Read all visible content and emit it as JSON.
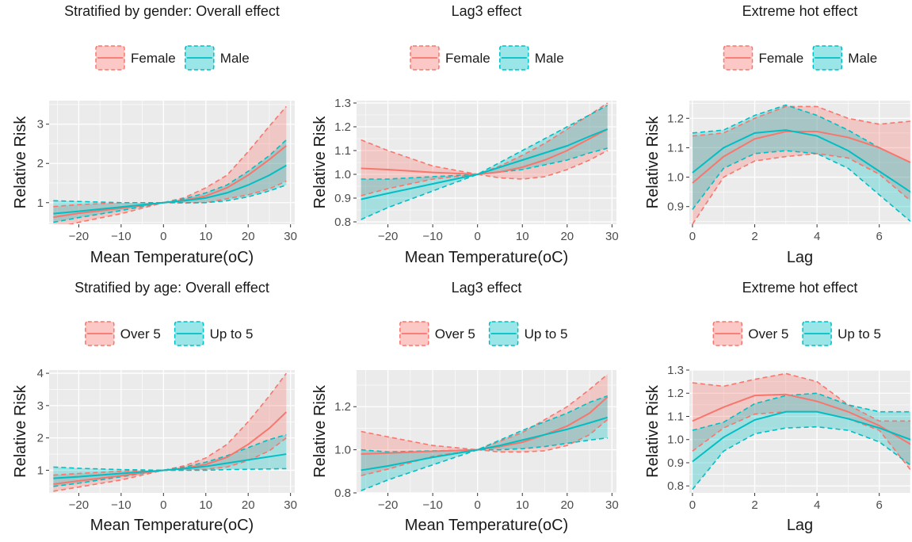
{
  "figure": {
    "colors": {
      "series_a": "#F8766D",
      "series_b": "#00BFC4",
      "panel_bg": "#EBEBEB",
      "grid": "#FFFFFF"
    }
  },
  "chart_data": [
    {
      "type": "line",
      "title": "Stratified by gender: Overall effect",
      "xlabel": "Mean Temperature(oC)",
      "ylabel": "Relative Risk",
      "xlim": [
        -27,
        31
      ],
      "ylim": [
        0.45,
        3.6
      ],
      "xticks": [
        -20,
        -10,
        0,
        10,
        20,
        30
      ],
      "yticks": [
        1,
        2,
        3
      ],
      "grid": true,
      "legend_position": "top",
      "x": [
        -26,
        -20,
        -10,
        0,
        5,
        10,
        15,
        20,
        25,
        29
      ],
      "series": [
        {
          "name": "Female",
          "color": "#F8766D",
          "values": [
            0.63,
            0.73,
            0.86,
            1.0,
            1.06,
            1.17,
            1.38,
            1.7,
            2.1,
            2.45
          ],
          "lower": [
            0.35,
            0.5,
            0.72,
            1.0,
            0.99,
            1.0,
            1.1,
            1.2,
            1.35,
            1.55
          ],
          "upper": [
            0.9,
            0.95,
            1.0,
            1.0,
            1.13,
            1.38,
            1.7,
            2.3,
            2.95,
            3.45
          ]
        },
        {
          "name": "Male",
          "color": "#00BFC4",
          "values": [
            0.72,
            0.78,
            0.89,
            1.0,
            1.05,
            1.12,
            1.25,
            1.45,
            1.7,
            1.95
          ],
          "lower": [
            0.5,
            0.62,
            0.8,
            1.0,
            1.0,
            1.0,
            1.05,
            1.15,
            1.3,
            1.45
          ],
          "upper": [
            1.05,
            1.03,
            1.0,
            1.0,
            1.1,
            1.25,
            1.45,
            1.8,
            2.2,
            2.6
          ]
        }
      ]
    },
    {
      "type": "line",
      "title": "Lag3 effect",
      "xlabel": "Mean Temperature(oC)",
      "ylabel": "Relative Risk",
      "xlim": [
        -27,
        31
      ],
      "ylim": [
        0.79,
        1.31
      ],
      "xticks": [
        -20,
        -10,
        0,
        10,
        20,
        30
      ],
      "yticks": [
        0.8,
        0.9,
        1.0,
        1.1,
        1.2,
        1.3
      ],
      "grid": true,
      "legend_position": "top",
      "x": [
        -26,
        -20,
        -10,
        0,
        5,
        10,
        15,
        20,
        25,
        29
      ],
      "series": [
        {
          "name": "Female",
          "color": "#F8766D",
          "values": [
            1.025,
            1.02,
            1.008,
            1.0,
            1.01,
            1.03,
            1.06,
            1.1,
            1.15,
            1.19
          ],
          "lower": [
            0.91,
            0.94,
            0.98,
            1.0,
            0.985,
            0.98,
            0.99,
            1.02,
            1.06,
            1.1
          ],
          "upper": [
            1.145,
            1.1,
            1.035,
            1.0,
            1.035,
            1.08,
            1.13,
            1.19,
            1.25,
            1.3
          ]
        },
        {
          "name": "Male",
          "color": "#00BFC4",
          "values": [
            0.895,
            0.92,
            0.96,
            1.0,
            1.03,
            1.06,
            1.09,
            1.12,
            1.16,
            1.19
          ],
          "lower": [
            0.81,
            0.86,
            0.93,
            1.0,
            1.01,
            1.02,
            1.04,
            1.06,
            1.09,
            1.11
          ],
          "upper": [
            0.98,
            0.98,
            0.99,
            1.0,
            1.05,
            1.1,
            1.15,
            1.2,
            1.25,
            1.29
          ]
        }
      ]
    },
    {
      "type": "line",
      "title": "Extreme hot effect",
      "xlabel": "Lag",
      "ylabel": "Relative Risk",
      "xlim": [
        -0.1,
        7
      ],
      "ylim": [
        0.84,
        1.26
      ],
      "xticks": [
        0,
        2,
        4,
        6
      ],
      "yticks": [
        0.9,
        1.0,
        1.1,
        1.2
      ],
      "grid": true,
      "legend_position": "top",
      "x": [
        0,
        1,
        2,
        3,
        4,
        5,
        6,
        7
      ],
      "series": [
        {
          "name": "Female",
          "color": "#F8766D",
          "values": [
            0.98,
            1.07,
            1.13,
            1.155,
            1.155,
            1.135,
            1.1,
            1.05
          ],
          "lower": [
            0.84,
            1.0,
            1.055,
            1.07,
            1.08,
            1.065,
            1.01,
            0.92
          ],
          "upper": [
            1.14,
            1.15,
            1.2,
            1.24,
            1.24,
            1.2,
            1.18,
            1.19
          ]
        },
        {
          "name": "Male",
          "color": "#00BFC4",
          "values": [
            1.015,
            1.1,
            1.15,
            1.16,
            1.14,
            1.09,
            1.02,
            0.95
          ],
          "lower": [
            0.89,
            1.03,
            1.08,
            1.09,
            1.08,
            1.03,
            0.94,
            0.85
          ],
          "upper": [
            1.15,
            1.16,
            1.21,
            1.245,
            1.21,
            1.16,
            1.1,
            1.05
          ]
        }
      ]
    },
    {
      "type": "line",
      "title": "Stratified by age: Overall effect",
      "xlabel": "Mean Temperature(oC)",
      "ylabel": "Relative Risk",
      "xlim": [
        -27,
        31
      ],
      "ylim": [
        0.3,
        4.1
      ],
      "xticks": [
        -20,
        -10,
        0,
        10,
        20,
        30
      ],
      "yticks": [
        1,
        2,
        3,
        4
      ],
      "grid": true,
      "legend_position": "top",
      "x": [
        -26,
        -20,
        -10,
        0,
        5,
        10,
        15,
        20,
        25,
        29
      ],
      "series": [
        {
          "name": "Over 5",
          "color": "#F8766D",
          "values": [
            0.57,
            0.67,
            0.83,
            1.0,
            1.06,
            1.18,
            1.4,
            1.8,
            2.3,
            2.8
          ],
          "lower": [
            0.35,
            0.48,
            0.7,
            1.0,
            1.0,
            1.03,
            1.1,
            1.3,
            1.6,
            2.0
          ],
          "upper": [
            0.85,
            0.9,
            0.97,
            1.0,
            1.14,
            1.38,
            1.8,
            2.5,
            3.3,
            4.0
          ]
        },
        {
          "name": "Up to 5",
          "color": "#00BFC4",
          "values": [
            0.75,
            0.8,
            0.9,
            1.0,
            1.05,
            1.12,
            1.22,
            1.32,
            1.42,
            1.5
          ],
          "lower": [
            0.5,
            0.6,
            0.8,
            1.0,
            1.0,
            1.0,
            1.02,
            1.03,
            1.04,
            1.05
          ],
          "upper": [
            1.1,
            1.06,
            1.02,
            1.0,
            1.1,
            1.25,
            1.45,
            1.7,
            1.95,
            2.1
          ]
        }
      ]
    },
    {
      "type": "line",
      "title": "Lag3 effect",
      "xlabel": "Mean Temperature(oC)",
      "ylabel": "Relative Risk",
      "xlim": [
        -27,
        31
      ],
      "ylim": [
        0.8,
        1.37
      ],
      "xticks": [
        -20,
        -10,
        0,
        10,
        20,
        30
      ],
      "yticks": [
        0.8,
        1.0,
        1.2
      ],
      "grid": true,
      "legend_position": "top",
      "x": [
        -26,
        -20,
        -10,
        0,
        5,
        10,
        15,
        20,
        25,
        29
      ],
      "series": [
        {
          "name": "Over 5",
          "color": "#F8766D",
          "values": [
            0.98,
            0.985,
            0.993,
            1.0,
            1.015,
            1.035,
            1.07,
            1.11,
            1.17,
            1.245
          ],
          "lower": [
            0.88,
            0.91,
            0.97,
            1.0,
            0.99,
            0.99,
            0.995,
            1.02,
            1.07,
            1.14
          ],
          "upper": [
            1.085,
            1.06,
            1.02,
            1.0,
            1.04,
            1.08,
            1.14,
            1.2,
            1.28,
            1.35
          ]
        },
        {
          "name": "Up to 5",
          "color": "#00BFC4",
          "values": [
            0.905,
            0.925,
            0.965,
            1.0,
            1.02,
            1.045,
            1.07,
            1.095,
            1.125,
            1.15
          ],
          "lower": [
            0.81,
            0.86,
            0.93,
            1.0,
            1.0,
            1.005,
            1.015,
            1.03,
            1.045,
            1.055
          ],
          "upper": [
            1.0,
            0.99,
            0.995,
            1.0,
            1.045,
            1.09,
            1.13,
            1.17,
            1.22,
            1.25
          ]
        }
      ]
    },
    {
      "type": "line",
      "title": "Extreme hot effect",
      "xlabel": "Lag",
      "ylabel": "Relative Risk",
      "xlim": [
        -0.1,
        7
      ],
      "ylim": [
        0.77,
        1.3
      ],
      "xticks": [
        0,
        2,
        4,
        6
      ],
      "yticks": [
        0.8,
        0.9,
        1.0,
        1.1,
        1.2,
        1.3
      ],
      "grid": true,
      "legend_position": "top",
      "x": [
        0,
        1,
        2,
        3,
        4,
        5,
        6,
        7
      ],
      "series": [
        {
          "name": "Over 5",
          "color": "#F8766D",
          "values": [
            1.08,
            1.14,
            1.19,
            1.195,
            1.165,
            1.12,
            1.06,
            0.98
          ],
          "lower": [
            0.95,
            1.05,
            1.11,
            1.12,
            1.12,
            1.09,
            1.04,
            0.87
          ],
          "upper": [
            1.245,
            1.23,
            1.26,
            1.285,
            1.25,
            1.15,
            1.08,
            1.08
          ]
        },
        {
          "name": "Up to 5",
          "color": "#00BFC4",
          "values": [
            0.905,
            1.01,
            1.085,
            1.12,
            1.12,
            1.09,
            1.05,
            1.0
          ],
          "lower": [
            0.785,
            0.95,
            1.025,
            1.05,
            1.055,
            1.04,
            0.99,
            0.89
          ],
          "upper": [
            1.04,
            1.075,
            1.155,
            1.19,
            1.2,
            1.15,
            1.12,
            1.12
          ]
        }
      ]
    }
  ]
}
